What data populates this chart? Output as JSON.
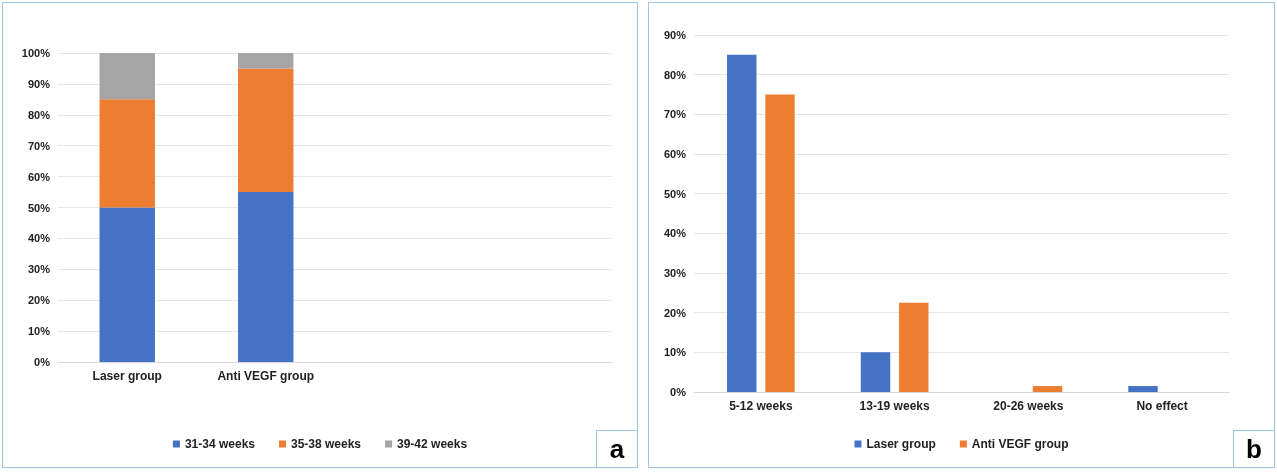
{
  "chart_data": [
    {
      "type": "bar",
      "stacked": true,
      "categories": [
        "Laser group",
        "Anti VEGF group",
        null,
        null
      ],
      "series": [
        {
          "name": "31-34 weeks",
          "color": "#4472c4",
          "values": [
            50,
            55,
            null,
            null
          ]
        },
        {
          "name": "35-38 weeks",
          "color": "#ed7d31",
          "values": [
            35,
            40,
            null,
            null
          ]
        },
        {
          "name": "39-42 weeks",
          "color": "#a5a5a5",
          "values": [
            15,
            5,
            null,
            null
          ]
        }
      ],
      "ylim": [
        0,
        100
      ],
      "yticks": [
        {
          "value": 0,
          "label": "0%"
        },
        {
          "value": 10,
          "label": "10%"
        },
        {
          "value": 20,
          "label": "20%"
        },
        {
          "value": 30,
          "label": "30%"
        },
        {
          "value": 40,
          "label": "40%"
        },
        {
          "value": 50,
          "label": "50%"
        },
        {
          "value": 60,
          "label": "60%"
        },
        {
          "value": 70,
          "label": "70%"
        },
        {
          "value": 80,
          "label": "80%"
        },
        {
          "value": 90,
          "label": "90%"
        },
        {
          "value": 100,
          "label": "100%"
        }
      ],
      "grid": "y",
      "legend": "bottom",
      "annotations": [
        "a"
      ]
    },
    {
      "type": "bar",
      "categories": [
        "5-12 weeks",
        "13-19 weeks",
        "20-26 weeks",
        "No effect"
      ],
      "series": [
        {
          "name": "Laser group",
          "color": "#4472c4",
          "values": [
            85,
            10,
            0,
            1.5
          ]
        },
        {
          "name": "Anti VEGF group",
          "color": "#ed7d31",
          "values": [
            75,
            22.5,
            1.5,
            0
          ]
        }
      ],
      "ylim": [
        0,
        90
      ],
      "yticks": [
        {
          "value": 0,
          "label": "0%"
        },
        {
          "value": 10,
          "label": "10%"
        },
        {
          "value": 20,
          "label": "20%"
        },
        {
          "value": 30,
          "label": "30%"
        },
        {
          "value": 40,
          "label": "40%"
        },
        {
          "value": 50,
          "label": "50%"
        },
        {
          "value": 60,
          "label": "60%"
        },
        {
          "value": 70,
          "label": "70%"
        },
        {
          "value": 80,
          "label": "80%"
        },
        {
          "value": 90,
          "label": "90%"
        }
      ],
      "grid": "y",
      "legend": "bottom",
      "annotations": [
        "b"
      ]
    }
  ]
}
